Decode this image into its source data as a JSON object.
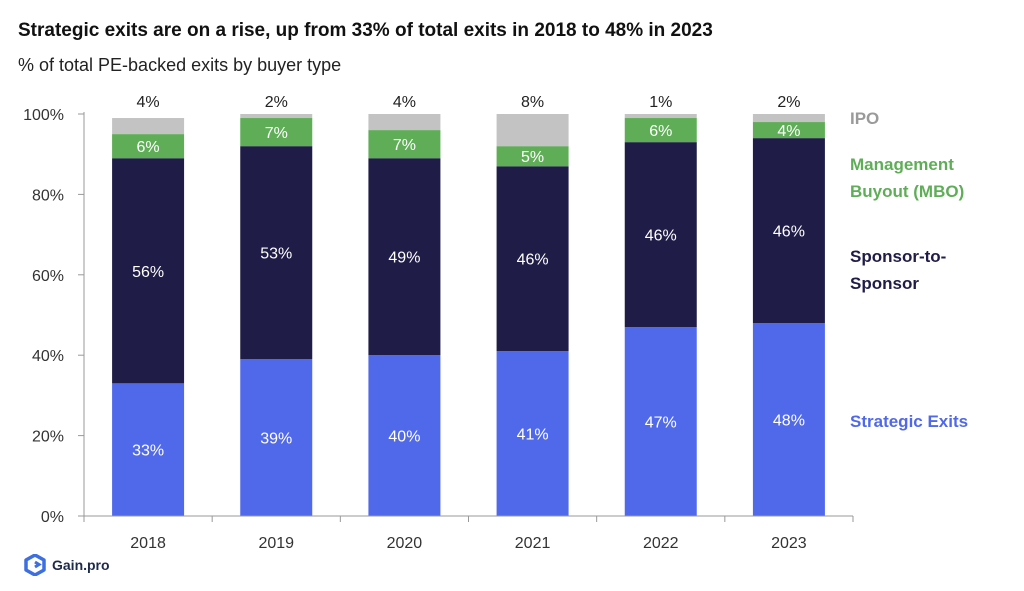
{
  "title": "Strategic exits are on a rise, up from 33% of total exits in 2018 to 48% in 2023",
  "subtitle": "% of total PE-backed exits by buyer type",
  "brand": "Gain.pro",
  "colors": {
    "strategic": "#5069ea",
    "sponsor": "#1f1d47",
    "mbo": "#5fae57",
    "ipo": "#c3c3c3",
    "ipo_label": "#9a9a9a",
    "logo": "#3d6fe0"
  },
  "chart_data": {
    "type": "bar",
    "stacked": true,
    "categories": [
      "2018",
      "2019",
      "2020",
      "2021",
      "2022",
      "2023"
    ],
    "series": [
      {
        "name": "Strategic Exits",
        "values": [
          33,
          39,
          40,
          41,
          47,
          48
        ],
        "labels": [
          "33%",
          "39%",
          "40%",
          "41%",
          "47%",
          "48%"
        ]
      },
      {
        "name": "Sponsor-to-Sponsor",
        "values": [
          56,
          53,
          49,
          46,
          46,
          46
        ],
        "labels": [
          "56%",
          "53%",
          "49%",
          "46%",
          "46%",
          "46%"
        ]
      },
      {
        "name": "Management Buyout (MBO)",
        "values": [
          6,
          7,
          7,
          5,
          6,
          4
        ],
        "labels": [
          "6%",
          "7%",
          "7%",
          "5%",
          "6%",
          "4%"
        ]
      },
      {
        "name": "IPO",
        "values": [
          4,
          2,
          4,
          8,
          1,
          2
        ],
        "labels": [
          "4%",
          "2%",
          "4%",
          "8%",
          "1%",
          "2%"
        ]
      }
    ],
    "legend": [
      {
        "name": "IPO",
        "lines": [
          "IPO"
        ]
      },
      {
        "name": "Management Buyout (MBO)",
        "lines": [
          "Management",
          "Buyout (MBO)"
        ]
      },
      {
        "name": "Sponsor-to-Sponsor",
        "lines": [
          "Sponsor-to-",
          "Sponsor"
        ]
      },
      {
        "name": "Strategic Exits",
        "lines": [
          "Strategic Exits"
        ]
      }
    ],
    "ylim": [
      0,
      100
    ],
    "yticks": [
      0,
      20,
      40,
      60,
      80,
      100
    ],
    "ytick_labels": [
      "0%",
      "20%",
      "40%",
      "60%",
      "80%",
      "100%"
    ],
    "xlabel": "",
    "ylabel": "",
    "legend_position": "right",
    "grid": false
  }
}
